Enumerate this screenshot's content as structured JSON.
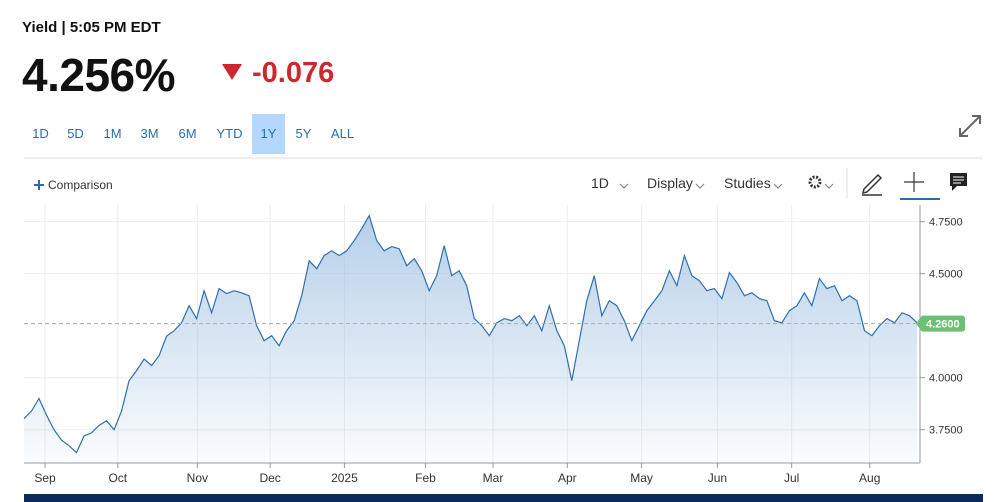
{
  "header": {
    "title": "Yield | 5:05 PM EDT",
    "price": "4.256%",
    "change": "-0.076"
  },
  "ranges": {
    "options": [
      "1D",
      "5D",
      "1M",
      "3M",
      "6M",
      "YTD",
      "1Y",
      "5Y",
      "ALL"
    ],
    "selected": "1Y"
  },
  "toolbar": {
    "comparison": "Comparison",
    "interval": "1D",
    "display": "Display",
    "studies": "Studies"
  },
  "chart_data": {
    "type": "area",
    "color": "#2f6fad",
    "fill_color": "#9ec0e2",
    "values": [
      3.803,
      3.84,
      3.9,
      3.82,
      3.75,
      3.7,
      3.673,
      3.64,
      3.72,
      3.735,
      3.77,
      3.793,
      3.75,
      3.84,
      3.986,
      4.034,
      4.09,
      4.058,
      4.106,
      4.2,
      4.226,
      4.264,
      4.346,
      4.284,
      4.418,
      4.312,
      4.428,
      4.404,
      4.418,
      4.408,
      4.394,
      4.25,
      4.178,
      4.202,
      4.154,
      4.226,
      4.274,
      4.394,
      4.562,
      4.524,
      4.587,
      4.61,
      4.587,
      4.61,
      4.659,
      4.716,
      4.779,
      4.659,
      4.61,
      4.63,
      4.62,
      4.538,
      4.572,
      4.514,
      4.418,
      4.49,
      4.635,
      4.49,
      4.514,
      4.442,
      4.284,
      4.25,
      4.202,
      4.264,
      4.284,
      4.274,
      4.298,
      4.25,
      4.298,
      4.226,
      4.346,
      4.226,
      4.154,
      3.986,
      4.178,
      4.37,
      4.49,
      4.298,
      4.37,
      4.346,
      4.274,
      4.178,
      4.25,
      4.322,
      4.37,
      4.418,
      4.514,
      4.442,
      4.587,
      4.49,
      4.466,
      4.418,
      4.428,
      4.38,
      4.505,
      4.457,
      4.394,
      4.408,
      4.38,
      4.37,
      4.274,
      4.264,
      4.322,
      4.346,
      4.408,
      4.346,
      4.476,
      4.428,
      4.442,
      4.37,
      4.394,
      4.37,
      4.226,
      4.202,
      4.25,
      4.284,
      4.264,
      4.312,
      4.298,
      4.264
    ],
    "xlim": [
      0,
      119
    ],
    "xticks": [
      {
        "value": 2.8,
        "label": "Sep"
      },
      {
        "value": 12.5,
        "label": "Oct"
      },
      {
        "value": 23.1,
        "label": "Nov"
      },
      {
        "value": 32.8,
        "label": "Dec"
      },
      {
        "value": 42.7,
        "label": "2025"
      },
      {
        "value": 53.5,
        "label": "Feb"
      },
      {
        "value": 62.5,
        "label": "Mar"
      },
      {
        "value": 72.4,
        "label": "Apr"
      },
      {
        "value": 82.3,
        "label": "May"
      },
      {
        "value": 92.4,
        "label": "Jun"
      },
      {
        "value": 102.3,
        "label": "Jul"
      },
      {
        "value": 112.7,
        "label": "Aug"
      }
    ],
    "ylim": [
      3.59,
      4.83
    ],
    "yticks": [
      {
        "value": 3.75,
        "label": "3.7500"
      },
      {
        "value": 4.0,
        "label": "4.0000"
      },
      {
        "value": 4.5,
        "label": "4.5000"
      },
      {
        "value": 4.75,
        "label": "4.7500"
      }
    ],
    "current": {
      "value": 4.26,
      "label": "4.2600"
    },
    "current_color": "#6cbf73",
    "grid": true
  }
}
